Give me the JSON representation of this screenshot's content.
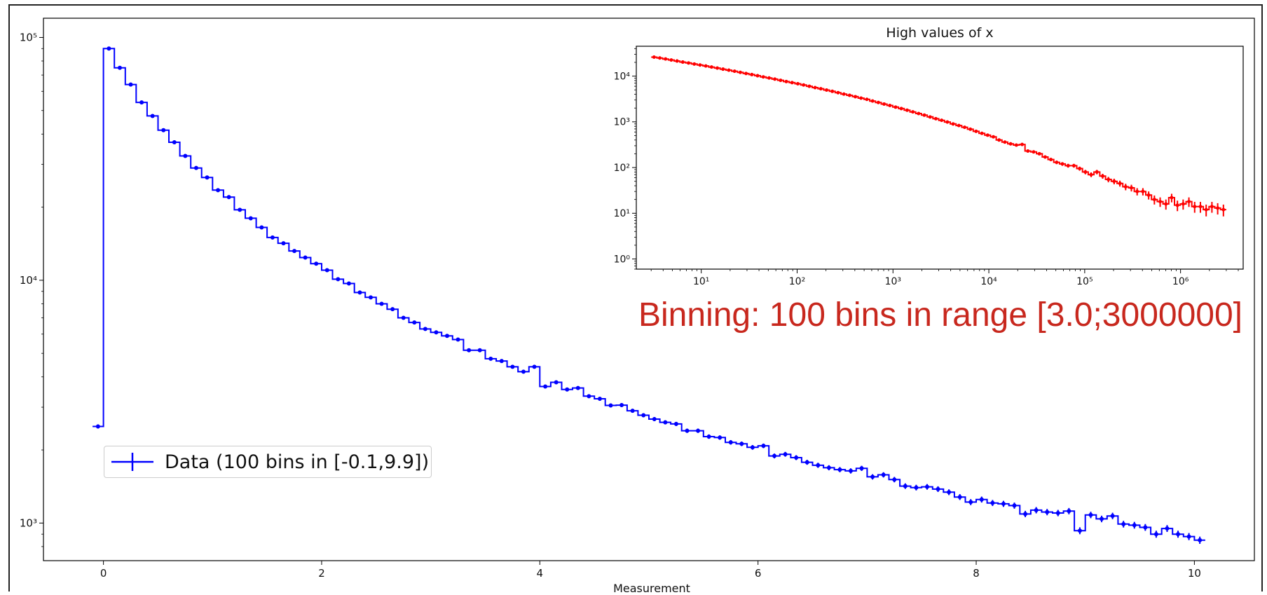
{
  "chart_data": [
    {
      "type": "line",
      "style": "step",
      "log_y": true,
      "xlabel": "Measurement",
      "ylabel": "",
      "xlim": [
        -0.55,
        10.55
      ],
      "ylim": [
        700,
        120000
      ],
      "xticks": [
        0,
        2,
        4,
        6,
        8,
        10
      ],
      "xtick_labels": [
        "0",
        "2",
        "4",
        "6",
        "8",
        "10"
      ],
      "yticks": [
        1000,
        10000,
        100000
      ],
      "ytick_labels": [
        "10³",
        "10⁴",
        "10⁵"
      ],
      "legend": "lower-left",
      "series": [
        {
          "name": "Data (100 bins in [-0.1,9.9])",
          "color": "#0000ff",
          "marker": "dot",
          "x_start": -0.1,
          "bin_width": 0.1,
          "values": [
            2500,
            90000,
            75000,
            64000,
            54000,
            47500,
            41500,
            37000,
            32500,
            29000,
            26500,
            23500,
            22000,
            19500,
            18000,
            16500,
            15000,
            14200,
            13200,
            12400,
            11700,
            11000,
            10100,
            9700,
            8900,
            8500,
            8000,
            7600,
            7000,
            6700,
            6300,
            6100,
            5900,
            5700,
            5150,
            5150,
            4750,
            4650,
            4400,
            4200,
            4400,
            3650,
            3800,
            3550,
            3600,
            3330,
            3250,
            3050,
            3060,
            2900,
            2780,
            2680,
            2600,
            2560,
            2400,
            2400,
            2270,
            2250,
            2150,
            2120,
            2050,
            2080,
            1890,
            1920,
            1860,
            1780,
            1730,
            1690,
            1660,
            1640,
            1680,
            1550,
            1580,
            1510,
            1420,
            1400,
            1410,
            1380,
            1340,
            1280,
            1220,
            1250,
            1210,
            1200,
            1180,
            1090,
            1130,
            1110,
            1100,
            1120,
            930,
            1080,
            1040,
            1070,
            990,
            980,
            960,
            900,
            950,
            900,
            880,
            850
          ]
        }
      ]
    },
    {
      "type": "line",
      "style": "step",
      "title": "High values of x",
      "log_x": true,
      "log_y": true,
      "xlim": [
        2.1,
        4500000
      ],
      "ylim": [
        0.6,
        45000
      ],
      "xticks": [
        10,
        100,
        1000,
        10000,
        100000,
        1000000
      ],
      "xtick_labels": [
        "10¹",
        "10²",
        "10³",
        "10⁴",
        "10⁵",
        "10⁶"
      ],
      "yticks": [
        1,
        10,
        100,
        1000,
        10000
      ],
      "ytick_labels": [
        "10⁰",
        "10¹",
        "10²",
        "10³",
        "10⁴"
      ],
      "series": [
        {
          "name": "",
          "color": "#ff0000",
          "marker": "dot",
          "bins": 100,
          "range": [
            3.0,
            3000000
          ],
          "values": [
            26000,
            24900,
            23700,
            22500,
            21400,
            20300,
            19400,
            18400,
            17500,
            16700,
            15800,
            15000,
            14200,
            13500,
            12800,
            12100,
            11400,
            10800,
            10200,
            9600,
            9100,
            8600,
            8100,
            7600,
            7200,
            6800,
            6400,
            6000,
            5600,
            5300,
            4950,
            4650,
            4350,
            4050,
            3800,
            3550,
            3300,
            3100,
            2850,
            2650,
            2450,
            2280,
            2100,
            1950,
            1800,
            1650,
            1520,
            1400,
            1280,
            1170,
            1080,
            990,
            900,
            830,
            760,
            690,
            620,
            560,
            510,
            470,
            400,
            360,
            330,
            310,
            320,
            230,
            220,
            200,
            170,
            150,
            130,
            120,
            110,
            110,
            95,
            80,
            70,
            80,
            65,
            55,
            50,
            45,
            38,
            36,
            30,
            30,
            25,
            20,
            18,
            16,
            22,
            15,
            16,
            18,
            14,
            14,
            12,
            14,
            13,
            12
          ]
        }
      ]
    }
  ],
  "legend_label": "Data (100 bins in [-0.1,9.9])",
  "annotation": "Binning: 100 bins in range [3.0;3000000]"
}
